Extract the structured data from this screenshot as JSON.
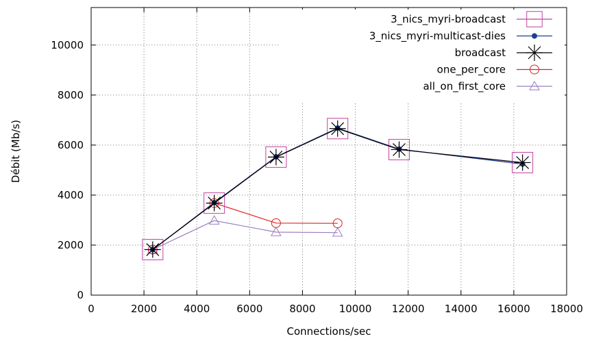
{
  "chart_data": {
    "type": "line",
    "title": "",
    "xlabel": "Connections/sec",
    "ylabel": "Débit (Mb/s)",
    "xlim": [
      0,
      18000
    ],
    "ylim": [
      0,
      11500
    ],
    "xticks": [
      0,
      2000,
      4000,
      6000,
      8000,
      10000,
      12000,
      14000,
      16000,
      18000
    ],
    "yticks": [
      0,
      2000,
      4000,
      6000,
      8000,
      10000
    ],
    "grid": true,
    "legend_position": "top-right",
    "series": [
      {
        "name": "3_nics_myri-broadcast",
        "color": "#c040a0",
        "marker": "square",
        "x": [
          2330,
          4660,
          7000,
          9330,
          11660,
          16330
        ],
        "y": [
          1820,
          3680,
          5520,
          6660,
          5820,
          5300
        ]
      },
      {
        "name": "3_nics_myri-multicast-dies",
        "color": "#1c3f95",
        "marker": "dot",
        "x": [
          2330,
          4660,
          7000,
          9330,
          11660,
          16330
        ],
        "y": [
          1820,
          3700,
          5530,
          6680,
          5840,
          5240
        ]
      },
      {
        "name": "broadcast",
        "color": "#000000",
        "marker": "star",
        "x": [
          2330,
          4660,
          7000,
          9330,
          11660,
          16330
        ],
        "y": [
          1820,
          3680,
          5520,
          6660,
          5820,
          5300
        ]
      },
      {
        "name": "one_per_core",
        "color": "#e02020",
        "marker": "circle",
        "x": [
          2330,
          4660,
          7000,
          9330
        ],
        "y": [
          1820,
          3680,
          2880,
          2870
        ]
      },
      {
        "name": "all_on_first_core",
        "color": "#9b7fc0",
        "marker": "triangle",
        "x": [
          2330,
          4660,
          7000,
          9330
        ],
        "y": [
          1820,
          2980,
          2520,
          2500
        ]
      }
    ]
  }
}
